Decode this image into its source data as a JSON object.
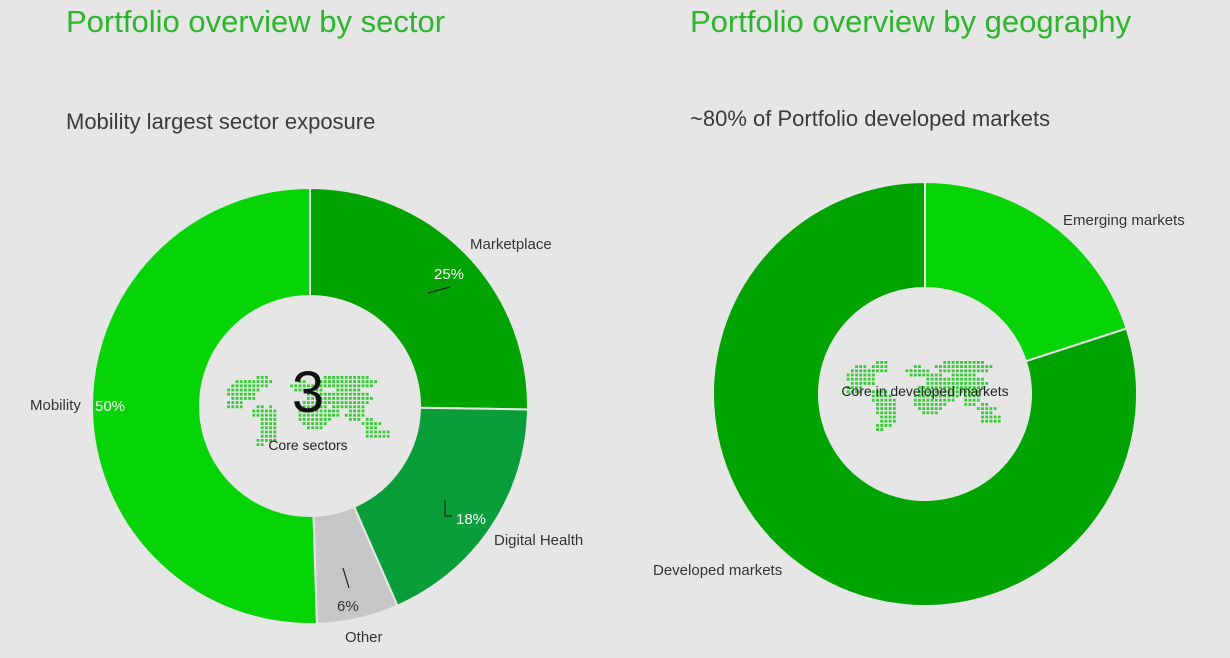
{
  "chart_data": [
    {
      "type": "pie",
      "title": "Portfolio overview by sector",
      "subtitle": "Mobility largest sector exposure",
      "center_value": "3",
      "center_label": "Core sectors",
      "slices": [
        {
          "label": "Marketplace",
          "value": 25,
          "value_label": "25%",
          "color": "#00a300"
        },
        {
          "label": "Digital Health",
          "value": 18,
          "value_label": "18%",
          "color": "#0a9e3a"
        },
        {
          "label": "Other",
          "value": 6,
          "value_label": "6%",
          "color": "#c6c6c6"
        },
        {
          "label": "Mobility",
          "value": 50,
          "value_label": "50%",
          "color": "#06d406"
        }
      ]
    },
    {
      "type": "pie",
      "title": "Portfolio overview by geography",
      "subtitle": "~80% of Portfolio developed markets",
      "center_label": "Core in developed markets",
      "slices": [
        {
          "label": "Emerging markets",
          "value": 20,
          "color": "#06d406"
        },
        {
          "label": "Developed markets",
          "value": 80,
          "color": "#00a300"
        }
      ]
    }
  ],
  "colors": {
    "title": "#2bb52b",
    "background": "#e6e6e6",
    "map_dots": "#33cc33"
  },
  "icons": [
    "world-map-icon"
  ]
}
